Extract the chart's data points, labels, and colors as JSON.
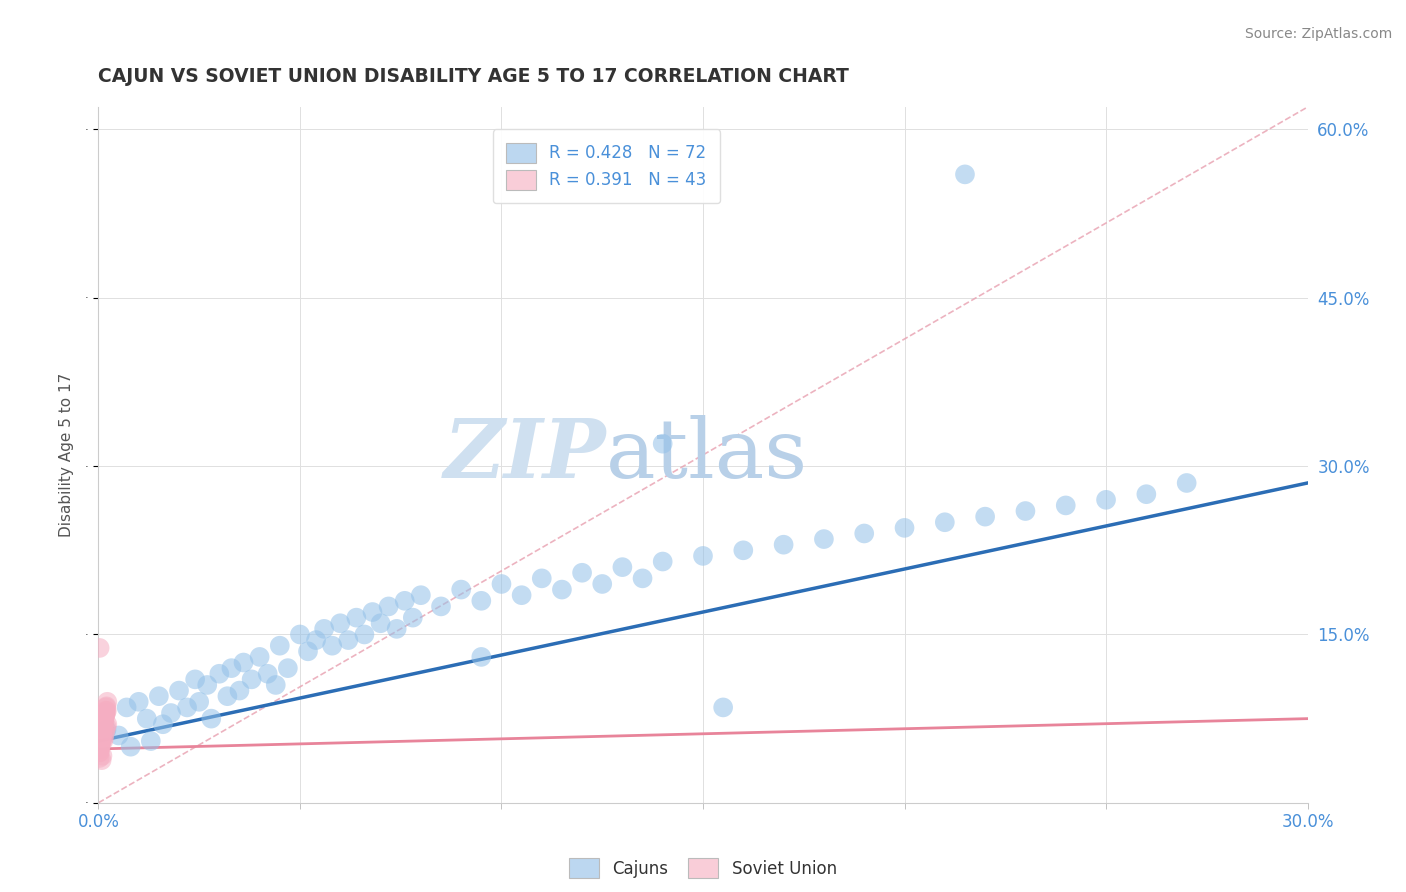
{
  "title": "CAJUN VS SOVIET UNION DISABILITY AGE 5 TO 17 CORRELATION CHART",
  "source": "Source: ZipAtlas.com",
  "ylabel": "Disability Age 5 to 17",
  "xlim": [
    0.0,
    0.3
  ],
  "ylim": [
    0.0,
    0.62
  ],
  "xticks": [
    0.0,
    0.05,
    0.1,
    0.15,
    0.2,
    0.25,
    0.3
  ],
  "yticks": [
    0.0,
    0.15,
    0.3,
    0.45,
    0.6
  ],
  "xticklabels": [
    "0.0%",
    "",
    "",
    "",
    "",
    "",
    "30.0%"
  ],
  "right_yticklabels": [
    "",
    "15.0%",
    "30.0%",
    "45.0%",
    "60.0%"
  ],
  "cajun_R": 0.428,
  "cajun_N": 72,
  "soviet_R": 0.391,
  "soviet_N": 43,
  "blue_dot_color": "#92c0e8",
  "pink_dot_color": "#f5aec2",
  "blue_line_color": "#2b6db5",
  "pink_line_color": "#e8849a",
  "legend_blue_color": "#bcd7f0",
  "legend_pink_color": "#f9cdd8",
  "watermark_zip_color": "#c8dff5",
  "watermark_atlas_color": "#c0d8f0",
  "title_color": "#333333",
  "axis_label_color": "#555555",
  "tick_color": "#4a90d9",
  "grid_color": "#e0e0e0",
  "cajun_x": [
    0.002,
    0.005,
    0.007,
    0.008,
    0.01,
    0.012,
    0.013,
    0.015,
    0.016,
    0.018,
    0.02,
    0.022,
    0.024,
    0.025,
    0.027,
    0.028,
    0.03,
    0.032,
    0.033,
    0.035,
    0.036,
    0.038,
    0.04,
    0.042,
    0.044,
    0.045,
    0.047,
    0.05,
    0.052,
    0.054,
    0.056,
    0.058,
    0.06,
    0.062,
    0.064,
    0.066,
    0.068,
    0.07,
    0.072,
    0.074,
    0.076,
    0.078,
    0.08,
    0.085,
    0.09,
    0.095,
    0.1,
    0.105,
    0.11,
    0.115,
    0.12,
    0.125,
    0.13,
    0.135,
    0.14,
    0.15,
    0.16,
    0.17,
    0.18,
    0.19,
    0.2,
    0.21,
    0.22,
    0.23,
    0.24,
    0.25,
    0.26,
    0.27,
    0.215,
    0.14,
    0.155,
    0.095
  ],
  "cajun_y": [
    0.065,
    0.06,
    0.085,
    0.05,
    0.09,
    0.075,
    0.055,
    0.095,
    0.07,
    0.08,
    0.1,
    0.085,
    0.11,
    0.09,
    0.105,
    0.075,
    0.115,
    0.095,
    0.12,
    0.1,
    0.125,
    0.11,
    0.13,
    0.115,
    0.105,
    0.14,
    0.12,
    0.15,
    0.135,
    0.145,
    0.155,
    0.14,
    0.16,
    0.145,
    0.165,
    0.15,
    0.17,
    0.16,
    0.175,
    0.155,
    0.18,
    0.165,
    0.185,
    0.175,
    0.19,
    0.18,
    0.195,
    0.185,
    0.2,
    0.19,
    0.205,
    0.195,
    0.21,
    0.2,
    0.215,
    0.22,
    0.225,
    0.23,
    0.235,
    0.24,
    0.245,
    0.25,
    0.255,
    0.26,
    0.265,
    0.27,
    0.275,
    0.285,
    0.56,
    0.32,
    0.085,
    0.13
  ],
  "soviet_x": [
    0.0002,
    0.0003,
    0.0004,
    0.0005,
    0.0006,
    0.0007,
    0.0008,
    0.0009,
    0.001,
    0.0011,
    0.0012,
    0.0013,
    0.0014,
    0.0015,
    0.0016,
    0.0017,
    0.0018,
    0.0019,
    0.002,
    0.0021,
    0.0022,
    0.0003,
    0.0005,
    0.0007,
    0.0009,
    0.0011,
    0.0013,
    0.0015,
    0.0017,
    0.0019,
    0.0004,
    0.0006,
    0.0008,
    0.001,
    0.0012,
    0.0014,
    0.0016,
    0.0018,
    0.002,
    0.0022,
    0.0008,
    0.001,
    0.0003
  ],
  "soviet_y": [
    0.045,
    0.055,
    0.048,
    0.06,
    0.052,
    0.065,
    0.058,
    0.07,
    0.062,
    0.068,
    0.055,
    0.072,
    0.058,
    0.075,
    0.062,
    0.078,
    0.065,
    0.08,
    0.068,
    0.082,
    0.07,
    0.04,
    0.05,
    0.055,
    0.06,
    0.065,
    0.07,
    0.075,
    0.08,
    0.085,
    0.045,
    0.052,
    0.058,
    0.063,
    0.068,
    0.073,
    0.078,
    0.082,
    0.086,
    0.09,
    0.038,
    0.042,
    0.138
  ],
  "cajun_line_x0": 0.0,
  "cajun_line_y0": 0.055,
  "cajun_line_x1": 0.3,
  "cajun_line_y1": 0.285,
  "soviet_line_x0": 0.0,
  "soviet_line_y0": 0.048,
  "soviet_line_x1": 0.3,
  "soviet_line_y1": 0.075,
  "diag_line_x0": 0.0,
  "diag_line_y0": 0.0,
  "diag_line_x1": 0.3,
  "diag_line_y1": 0.62
}
